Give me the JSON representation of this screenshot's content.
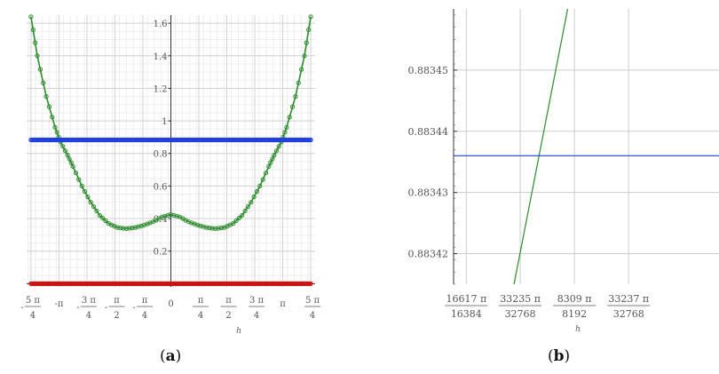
{
  "chart_data": [
    {
      "type": "line",
      "caption_letter": "a",
      "xlabel": "h",
      "ylabel": "",
      "xlim": [
        -4.05,
        4.05
      ],
      "ylim": [
        -0.02,
        1.65
      ],
      "grid": true,
      "x_ticks": [
        {
          "value": -3.92699,
          "numerator": "5 π",
          "denominator": "4",
          "sign": "-"
        },
        {
          "value": -3.14159,
          "inline": "-π"
        },
        {
          "value": -2.35619,
          "numerator": "3 π",
          "denominator": "4",
          "sign": "-"
        },
        {
          "value": -1.5708,
          "numerator": "π",
          "denominator": "2",
          "sign": "-"
        },
        {
          "value": -0.7854,
          "numerator": "π",
          "denominator": "4",
          "sign": "-"
        },
        {
          "value": 0,
          "inline": "0"
        },
        {
          "value": 0.7854,
          "numerator": "π",
          "denominator": "4",
          "sign": ""
        },
        {
          "value": 1.5708,
          "numerator": "π",
          "denominator": "2",
          "sign": ""
        },
        {
          "value": 2.35619,
          "numerator": "3 π",
          "denominator": "4",
          "sign": ""
        },
        {
          "value": 3.14159,
          "inline": "π"
        },
        {
          "value": 3.92699,
          "numerator": "5 π",
          "denominator": "4",
          "sign": ""
        }
      ],
      "y_ticks": [
        {
          "value": 0.2,
          "label": "0.2"
        },
        {
          "value": 0.4,
          "label": "0.4"
        },
        {
          "value": 0.6,
          "label": "0.6"
        },
        {
          "value": 0.8,
          "label": "0.8"
        },
        {
          "value": 1.0,
          "label": "1"
        },
        {
          "value": 1.2,
          "label": "1.2"
        },
        {
          "value": 1.4,
          "label": "1.4"
        },
        {
          "value": 1.6,
          "label": "1.6"
        }
      ],
      "series": [
        {
          "color": "#2e8b2e",
          "marker": "circle",
          "x": [
            -3.927,
            -3.75,
            -3.5,
            -3.25,
            -3.1,
            -2.9,
            -2.75,
            -2.5,
            -2.25,
            -2.0,
            -1.75,
            -1.5,
            -1.25,
            -1.0,
            -0.75,
            -0.5,
            -0.25,
            0.0,
            0.25,
            0.5,
            0.75,
            1.0,
            1.25,
            1.5,
            1.75,
            2.0,
            2.25,
            2.5,
            2.75,
            2.9,
            3.1,
            3.25,
            3.5,
            3.75,
            3.927
          ],
          "y": [
            1.64,
            1.4,
            1.15,
            0.96,
            0.87,
            0.79,
            0.72,
            0.6,
            0.5,
            0.42,
            0.37,
            0.345,
            0.338,
            0.345,
            0.36,
            0.38,
            0.41,
            0.425,
            0.41,
            0.38,
            0.36,
            0.345,
            0.338,
            0.345,
            0.37,
            0.42,
            0.5,
            0.6,
            0.72,
            0.79,
            0.87,
            0.96,
            1.15,
            1.4,
            1.64
          ]
        },
        {
          "color": "#1f3fe0",
          "marker": "circle",
          "x": [
            -3.927,
            3.927
          ],
          "y": [
            0.8834,
            0.8834
          ]
        },
        {
          "color": "#cc1111",
          "marker": "circle",
          "x": [
            -3.927,
            3.927
          ],
          "y": [
            0.0,
            0.0
          ]
        }
      ]
    },
    {
      "type": "line",
      "caption_letter": "b",
      "xlabel": "h",
      "ylabel": "",
      "xlim": [
        3.18625,
        3.18719
      ],
      "ylim": [
        0.883415,
        0.88346
      ],
      "grid": true,
      "x_ticks": [
        {
          "value": 3.186295,
          "numerator": "16617 π",
          "denominator": "16384"
        },
        {
          "value": 3.186486,
          "numerator": "33235 π",
          "denominator": "32768"
        },
        {
          "value": 3.186678,
          "numerator": "8309 π",
          "denominator": "8192"
        },
        {
          "value": 3.18687,
          "numerator": "33237 π",
          "denominator": "32768"
        }
      ],
      "y_ticks": [
        {
          "value": 0.88342,
          "label": "0.88342"
        },
        {
          "value": 0.88343,
          "label": "0.88343"
        },
        {
          "value": 0.88344,
          "label": "0.88344"
        },
        {
          "value": 0.88345,
          "label": "0.88345"
        }
      ],
      "series": [
        {
          "color": "#2e8b2e",
          "x": [
            3.186464,
            3.186654
          ],
          "y": [
            0.883415,
            0.88346
          ]
        },
        {
          "color": "#1f3fe0",
          "x": [
            3.18625,
            3.18719
          ],
          "y": [
            0.883436,
            0.883436
          ]
        }
      ]
    }
  ]
}
